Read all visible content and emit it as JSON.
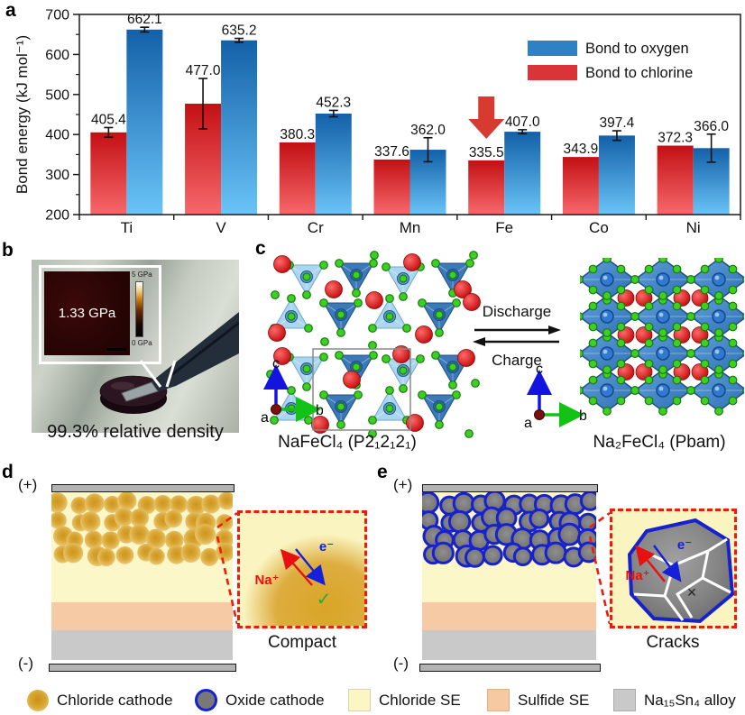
{
  "panels": {
    "a": {
      "letter": "a"
    },
    "b": {
      "letter": "b",
      "inset_value": "1.33 GPa",
      "colorbar_top": "5 GPa",
      "colorbar_bottom": "0 GPa",
      "caption": "99.3% relative density"
    },
    "c": {
      "letter": "c",
      "discharge": "Discharge",
      "charge": "Charge",
      "left_formula": "NaFeCl₄ (P2₁2₁2₁)",
      "right_formula": "Na₂FeCl₄ (Pbam)",
      "axis_a": "a",
      "axis_b": "b",
      "axis_c": "c"
    },
    "d": {
      "letter": "d",
      "ion": "Na⁺",
      "electron": "e⁻",
      "mark": "✓",
      "caption": "Compact"
    },
    "e": {
      "letter": "e",
      "ion": "Na⁺",
      "electron": "e⁻",
      "mark": "×",
      "caption": "Cracks"
    }
  },
  "electrodes": {
    "plus": "(+)",
    "minus": "(-)"
  },
  "chart_data": {
    "type": "bar",
    "title": "",
    "xlabel": "",
    "ylabel": "Bond energy (kJ mol⁻¹)",
    "ylim": [
      200,
      700
    ],
    "yticks": [
      200,
      300,
      400,
      500,
      600,
      700
    ],
    "grid": false,
    "legend_position": "top-right",
    "categories": [
      "Ti",
      "V",
      "Cr",
      "Mn",
      "Fe",
      "Co",
      "Ni"
    ],
    "series": [
      {
        "name": "Bond to chlorine",
        "legend_color": "#d93438",
        "gradient_top": "#c31014",
        "gradient_bottom": "#f7686b",
        "values": [
          405.4,
          477.0,
          380.3,
          337.6,
          335.5,
          343.9,
          372.3
        ],
        "errors": [
          12,
          63,
          0,
          0,
          0,
          0,
          0
        ]
      },
      {
        "name": "Bond to oxygen",
        "legend_color": "#2e81c4",
        "gradient_top": "#1360a8",
        "gradient_bottom": "#6ac4f7",
        "values": [
          662.1,
          635.2,
          452.3,
          362.0,
          407.0,
          397.4,
          366.0
        ],
        "errors": [
          6,
          5,
          8,
          30,
          5,
          12,
          35
        ]
      }
    ],
    "legend_order": [
      "Bond to oxygen",
      "Bond to chlorine"
    ],
    "annotation": {
      "type": "down-arrow",
      "target_category": "Fe",
      "target_series": "Bond to chlorine",
      "color": "#d63a30"
    }
  },
  "bottom_legend": {
    "items": [
      {
        "label": "Chloride cathode",
        "swatch": "gold-sphere"
      },
      {
        "label": "Oxide cathode",
        "swatch": "oxide-sphere"
      },
      {
        "label": "Chloride SE",
        "swatch": "square",
        "color": "#fbf6c3",
        "border": "#d6d2b4"
      },
      {
        "label": "Sulfide SE",
        "swatch": "square",
        "color": "#f6c9a2",
        "border": "#ddb18a"
      },
      {
        "label": "Na₁₅Sn₄ alloy",
        "swatch": "square",
        "color": "#c9c9c9",
        "border": "#ababab"
      }
    ]
  }
}
